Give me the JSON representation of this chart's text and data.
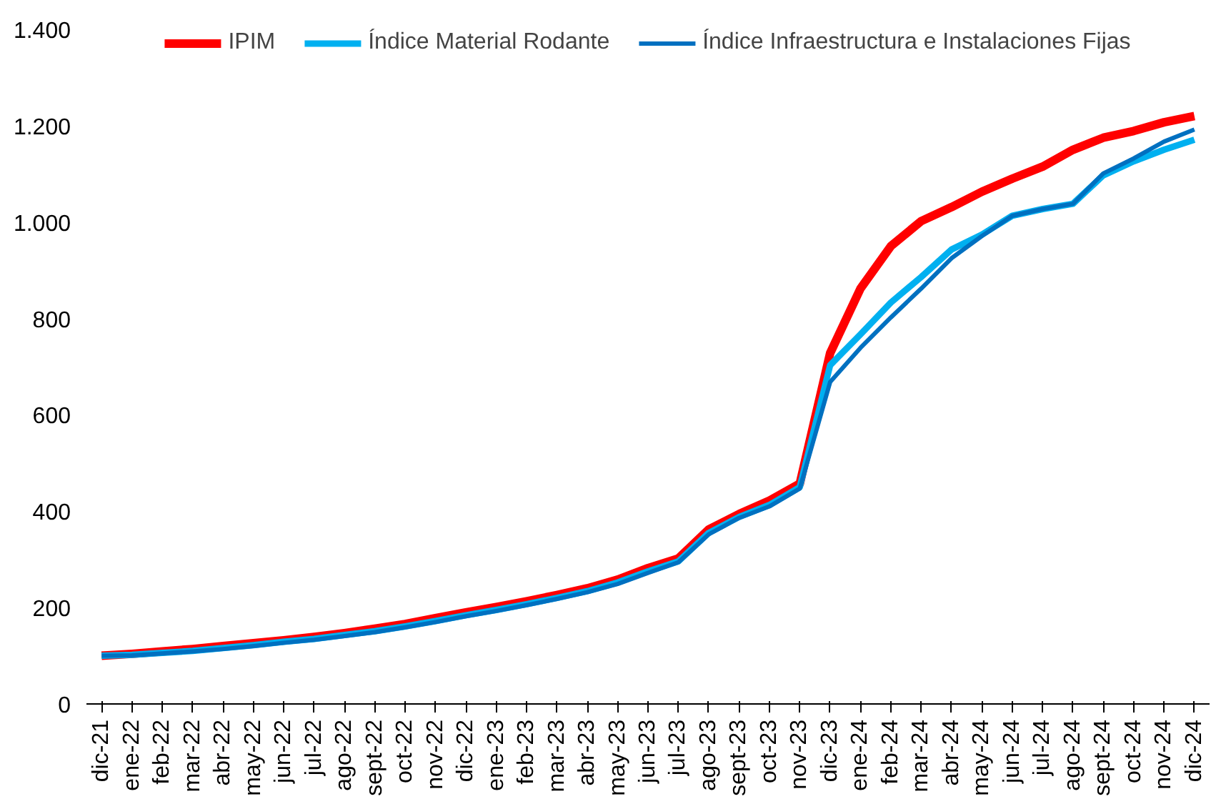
{
  "chart_data": {
    "type": "line",
    "categories": [
      "dic-21",
      "ene-22",
      "feb-22",
      "mar-22",
      "abr-22",
      "may-22",
      "jun-22",
      "jul-22",
      "ago-22",
      "sept-22",
      "oct-22",
      "nov-22",
      "dic-22",
      "ene-23",
      "feb-23",
      "mar-23",
      "abr-23",
      "may-23",
      "jun-23",
      "jul-23",
      "ago-23",
      "sept-23",
      "oct-23",
      "nov-23",
      "dic-23",
      "ene-24",
      "feb-24",
      "mar-24",
      "abr-24",
      "may-24",
      "jun-24",
      "jul-24",
      "ago-24",
      "sept-24",
      "oct-24",
      "nov-24",
      "dic-24"
    ],
    "series": [
      {
        "name": "IPIM",
        "color": "#ff0000",
        "values": [
          100,
          104,
          109,
          114,
          120,
          126,
          132,
          139,
          147,
          156,
          166,
          178,
          190,
          201,
          213,
          226,
          240,
          258,
          282,
          302,
          362,
          394,
          422,
          457,
          728,
          862,
          950,
          1002,
          1031,
          1063,
          1090,
          1115,
          1150,
          1175,
          1189,
          1207,
          1220
        ]
      },
      {
        "name": "Índice Material Rodante",
        "color": "#00b0f0",
        "values": [
          100,
          102,
          106,
          110,
          116,
          122,
          129,
          135,
          143,
          151,
          161,
          172,
          184,
          195,
          207,
          220,
          234,
          252,
          275,
          296,
          355,
          388,
          413,
          450,
          703,
          767,
          833,
          886,
          943,
          974,
          1013,
          1027,
          1038,
          1097,
          1126,
          1150,
          1171
        ]
      },
      {
        "name": "Índice Infraestructura e Instalaciones Fijas",
        "color": "#0070c0",
        "values": [
          100,
          101,
          105,
          109,
          114,
          120,
          127,
          133,
          141,
          149,
          159,
          170,
          182,
          193,
          205,
          218,
          232,
          249,
          272,
          294,
          352,
          386,
          410,
          447,
          668,
          739,
          802,
          862,
          925,
          971,
          1013,
          1027,
          1038,
          1101,
          1132,
          1167,
          1192
        ]
      }
    ],
    "ylim": [
      0,
      1400
    ],
    "yticks": [
      0,
      {
        "value": 200,
        "label": "200"
      },
      {
        "value": 400,
        "label": "400"
      },
      {
        "value": 600,
        "label": "600"
      },
      {
        "value": 800,
        "label": "800"
      },
      {
        "value": 1000,
        "label": "1.000"
      },
      {
        "value": 1200,
        "label": "1.200"
      },
      {
        "value": 1400,
        "label": "1.400"
      }
    ],
    "grid": false,
    "legend": "top",
    "marker": "none",
    "line_style": "solid"
  }
}
